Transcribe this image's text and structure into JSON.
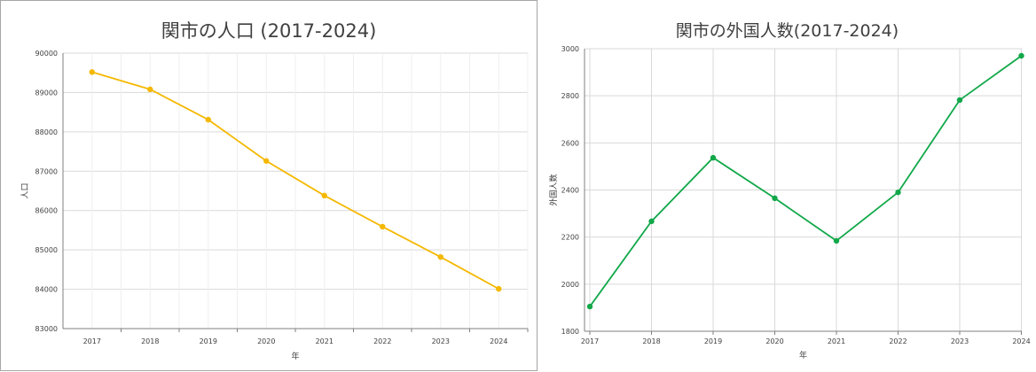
{
  "chart_data": [
    {
      "type": "line",
      "title": "関市の人口 (2017-2024)",
      "xlabel": "年",
      "ylabel": "人口",
      "x": [
        2017,
        2018,
        2019,
        2020,
        2021,
        2022,
        2023,
        2024
      ],
      "x_tick_labels": [
        "2017",
        "2018",
        "2019",
        "2020",
        "2021",
        "2022",
        "2023",
        "2024"
      ],
      "series": [
        {
          "values": [
            89520,
            89080,
            88310,
            87260,
            86380,
            85590,
            84820,
            84010
          ]
        }
      ],
      "ylim": [
        83000,
        90000
      ],
      "y_ticks": [
        83000,
        84000,
        85000,
        86000,
        87000,
        88000,
        89000,
        90000
      ],
      "y_tick_labels": [
        "83000",
        "84000",
        "85000",
        "86000",
        "87000",
        "88000",
        "89000",
        "90000"
      ],
      "color": "#f5b800",
      "grid": true,
      "markers": true
    },
    {
      "type": "line",
      "title": "関市の外国人数(2017-2024)",
      "xlabel": "年",
      "ylabel": "外国人数",
      "x": [
        2017,
        2018,
        2019,
        2020,
        2021,
        2022,
        2023,
        2024
      ],
      "x_tick_labels": [
        "2017",
        "2018",
        "2019",
        "2020",
        "2021",
        "2022",
        "2023",
        "2024"
      ],
      "series": [
        {
          "values": [
            1905,
            2267,
            2537,
            2365,
            2184,
            2390,
            2782,
            2970
          ]
        }
      ],
      "ylim": [
        1800,
        3000
      ],
      "y_ticks": [
        1800,
        2000,
        2200,
        2400,
        2600,
        2800,
        3000
      ],
      "y_tick_labels": [
        "1800",
        "2000",
        "2200",
        "2400",
        "2600",
        "2800",
        "3000"
      ],
      "color": "#12a84a",
      "grid": true,
      "markers": true
    }
  ]
}
